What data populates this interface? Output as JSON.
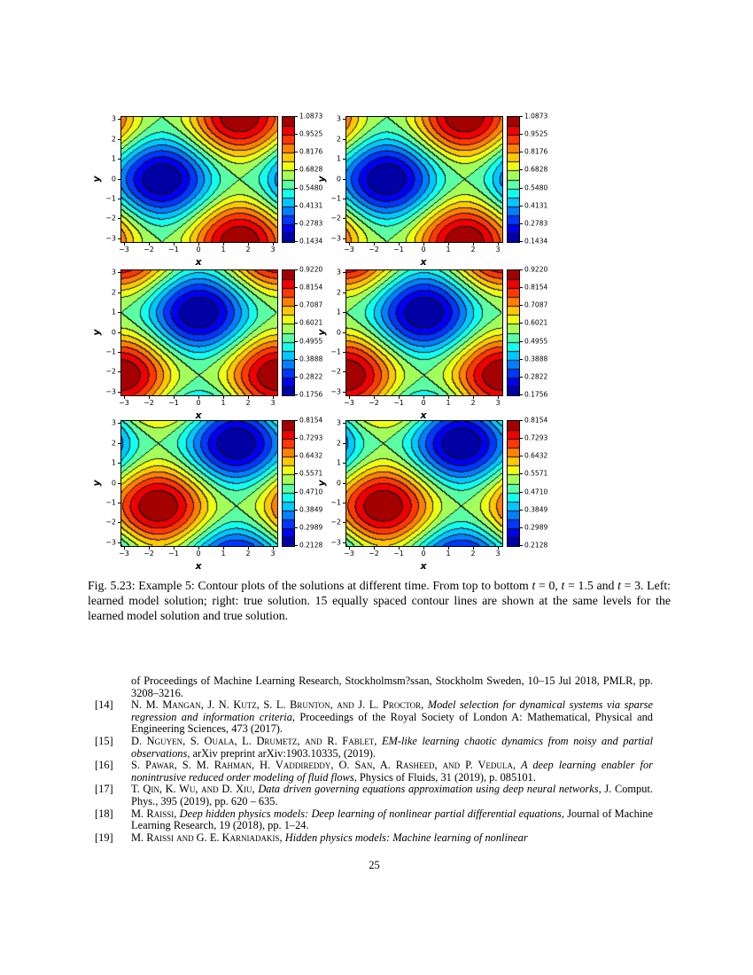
{
  "page": {
    "number": "25",
    "background": "#ffffff"
  },
  "figure": {
    "caption_segments": [
      [
        "rm",
        "Fig. 5.23: Example 5: Contour plots of the solutions at different time. From top to bottom "
      ],
      [
        "it",
        "t"
      ],
      [
        "rm",
        " = 0, "
      ],
      [
        "it",
        "t"
      ],
      [
        "rm",
        " = 1.5 and "
      ],
      [
        "it",
        "t"
      ],
      [
        "rm",
        " = 3. Left: learned model solution; right: true solution. 15 equally spaced contour lines are shown at the same levels for the learned model solution and true solution."
      ]
    ]
  },
  "chart_data": {
    "type": "heatmap",
    "subtype": "filled-contour",
    "colormap": "jet",
    "n_contour_levels": 15,
    "layout": "3 rows x 2 columns",
    "xlabel": "x",
    "ylabel": "y",
    "x_range": [
      -3.1416,
      3.1416
    ],
    "y_range": [
      -3.1416,
      3.1416
    ],
    "x_ticks": [
      "−3",
      "−2",
      "−1",
      "0",
      "1",
      "2",
      "3"
    ],
    "y_ticks": [
      "3",
      "2",
      "1",
      "0",
      "−1",
      "−2",
      "−3"
    ],
    "columns": [
      {
        "id": "learned",
        "name": "learned model solution"
      },
      {
        "id": "true",
        "name": "true solution"
      }
    ],
    "rows": [
      {
        "t": 0,
        "vmin": 0.1434,
        "vmax": 1.0873,
        "min_at": [
          -1.5,
          0
        ],
        "max_at": [
          1.64,
          3.14
        ],
        "colorbar_ticks": [
          "1.0873",
          "0.9525",
          "0.8176",
          "0.6828",
          "0.5480",
          "0.4131",
          "0.2783",
          "0.1434"
        ]
      },
      {
        "t": 1.5,
        "vmin": 0.1756,
        "vmax": 0.922,
        "min_at": [
          0,
          1
        ],
        "max_at": [
          3.14,
          -2.14
        ],
        "colorbar_ticks": [
          "0.9220",
          "0.8154",
          "0.7087",
          "0.6021",
          "0.4955",
          "0.3888",
          "0.2822",
          "0.1756"
        ]
      },
      {
        "t": 3,
        "vmin": 0.2128,
        "vmax": 0.8154,
        "min_at": [
          1.5,
          2
        ],
        "max_at": [
          -1.64,
          -1.14
        ],
        "colorbar_ticks": [
          "0.8154",
          "0.7293",
          "0.6432",
          "0.5571",
          "0.4710",
          "0.3849",
          "0.2989",
          "0.2128"
        ]
      }
    ]
  },
  "references": {
    "items": [
      {
        "label": "",
        "segments": [
          [
            "rm",
            "of Proceedings of Machine Learning Research, Stockholmsm?ssan, Stockholm Sweden, 10–15 Jul 2018, PMLR, pp. 3208–3216."
          ]
        ]
      },
      {
        "label": "[14]",
        "segments": [
          [
            "sc",
            "N. M. Mangan, J. N. Kutz, S. L. Brunton, and J. L. Proctor"
          ],
          [
            "rm",
            ", "
          ],
          [
            "it",
            "Model selection for dynamical systems via sparse regression and information criteria"
          ],
          [
            "rm",
            ", Proceedings of the Royal Society of London A: Mathematical, Physical and Engineering Sciences, 473 (2017)."
          ]
        ]
      },
      {
        "label": "[15]",
        "segments": [
          [
            "sc",
            "D. Nguyen, S. Ouala, L. Drumetz, and R. Fablet"
          ],
          [
            "rm",
            ", "
          ],
          [
            "it",
            "EM-like learning chaotic dynamics from noisy and partial observations"
          ],
          [
            "rm",
            ", arXiv preprint arXiv:1903.10335, (2019)."
          ]
        ]
      },
      {
        "label": "[16]",
        "segments": [
          [
            "sc",
            "S. Pawar, S. M. Rahman, H. Vaddireddy, O. San, A. Rasheed, and P. Vedula"
          ],
          [
            "rm",
            ", "
          ],
          [
            "it",
            "A deep learning enabler for nonintrusive reduced order modeling of fluid flows"
          ],
          [
            "rm",
            ", Physics of Fluids, 31 (2019), p. 085101."
          ]
        ]
      },
      {
        "label": "[17]",
        "segments": [
          [
            "sc",
            "T. Qin, K. Wu, and D. Xiu"
          ],
          [
            "rm",
            ", "
          ],
          [
            "it",
            "Data driven governing equations approximation using deep neural networks"
          ],
          [
            "rm",
            ", J. Comput. Phys., 395 (2019), pp. 620 – 635."
          ]
        ]
      },
      {
        "label": "[18]",
        "segments": [
          [
            "sc",
            "M. Raissi"
          ],
          [
            "rm",
            ", "
          ],
          [
            "it",
            "Deep hidden physics models: Deep learning of nonlinear partial differential equations"
          ],
          [
            "rm",
            ", Journal of Machine Learning Research, 19 (2018), pp. 1–24."
          ]
        ]
      },
      {
        "label": "[19]",
        "segments": [
          [
            "sc",
            "M. Raissi and G. E. Karniadakis"
          ],
          [
            "rm",
            ", "
          ],
          [
            "it",
            "Hidden physics models: Machine learning of nonlinear"
          ]
        ]
      }
    ]
  }
}
